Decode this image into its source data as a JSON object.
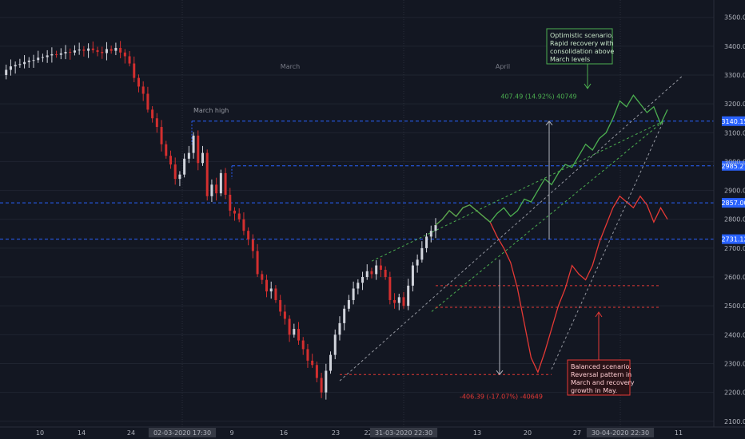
{
  "chart_data": {
    "type": "candlestick",
    "symbol_context": "S&P 500 index, 2020",
    "ylim": [
      2080,
      3560
    ],
    "y_ticks": [
      "2100.00",
      "2200.00",
      "2300.00",
      "2400.00",
      "2500.00",
      "2600.00",
      "2700.00",
      "2800.00",
      "2900.00",
      "3000.00",
      "3100.00",
      "3200.00",
      "3300.00",
      "3400.00",
      "3500.00"
    ],
    "x_tick_labels": [
      "10",
      "14",
      "24",
      "02-03-2020  17:30",
      "9",
      "16",
      "23",
      "22:30",
      "31-03-2020  22:30",
      "13",
      "20",
      "27",
      "30-04-2020  22:30",
      "11"
    ],
    "month_labels": [
      "March",
      "April"
    ],
    "price_levels": [
      {
        "value": 3140.15,
        "label": "3140.15",
        "color": "#2962ff"
      },
      {
        "value": 2985.27,
        "label": "2985.27",
        "color": "#2962ff"
      },
      {
        "value": 2857.0,
        "label": "2857.00",
        "color": "#2962ff"
      },
      {
        "value": 2731.12,
        "label": "2731.12",
        "color": "#2962ff"
      }
    ],
    "candles_close": [
      3300,
      3318,
      3330,
      3335,
      3338,
      3345,
      3350,
      3352,
      3360,
      3362,
      3368,
      3372,
      3370,
      3375,
      3380,
      3378,
      3385,
      3388,
      3384,
      3392,
      3386,
      3380,
      3376,
      3390,
      3384,
      3394,
      3378,
      3365,
      3340,
      3290,
      3260,
      3235,
      3180,
      3150,
      3120,
      3060,
      3020,
      2990,
      2940,
      2955,
      3010,
      3030,
      3090,
      2995,
      3030,
      2880,
      2920,
      2890,
      2960,
      2885,
      2830,
      2820,
      2800,
      2760,
      2730,
      2690,
      2610,
      2590,
      2550,
      2560,
      2520,
      2480,
      2455,
      2400,
      2420,
      2380,
      2350,
      2310,
      2295,
      2250,
      2200,
      2275,
      2330,
      2400,
      2440,
      2490,
      2520,
      2560,
      2580,
      2600,
      2620,
      2610,
      2640,
      2625,
      2600,
      2520,
      2510,
      2530,
      2500,
      2570,
      2640,
      2660,
      2700,
      2740,
      2760,
      2780
    ],
    "optimistic_path": [
      2780,
      2800,
      2830,
      2810,
      2840,
      2850,
      2830,
      2810,
      2790,
      2820,
      2840,
      2810,
      2830,
      2870,
      2860,
      2900,
      2940,
      2920,
      2960,
      2990,
      2980,
      3020,
      3060,
      3040,
      3080,
      3100,
      3150,
      3210,
      3190,
      3230,
      3200,
      3170,
      3190,
      3130,
      3180
    ],
    "balanced_path": [
      2780,
      2800,
      2830,
      2810,
      2840,
      2850,
      2830,
      2810,
      2790,
      2740,
      2700,
      2650,
      2560,
      2440,
      2320,
      2270,
      2340,
      2420,
      2500,
      2560,
      2640,
      2610,
      2590,
      2640,
      2720,
      2780,
      2840,
      2880,
      2860,
      2840,
      2880,
      2850,
      2790,
      2840,
      2800
    ],
    "annotations": {
      "march_high": "March high",
      "optimistic_measure": "407.49 (14.92%) 40749",
      "balanced_measure": "-406.39 (-17.07%) -40649",
      "optimistic_box": [
        "Optimistic scenario.",
        "Rapid recovery with",
        "consolidation above",
        "March levels"
      ],
      "balanced_box": [
        "Balanced scenario.",
        "Reversal pattern in",
        "March and recovery",
        "growth in May."
      ]
    },
    "colors": {
      "background": "#131722",
      "up": "#d1d4dc",
      "down": "#d32f2f",
      "optimistic": "#4caf50",
      "balanced": "#e53935",
      "level": "#2962ff",
      "grid": "#1f2430"
    },
    "grid": true,
    "legend": "none"
  }
}
